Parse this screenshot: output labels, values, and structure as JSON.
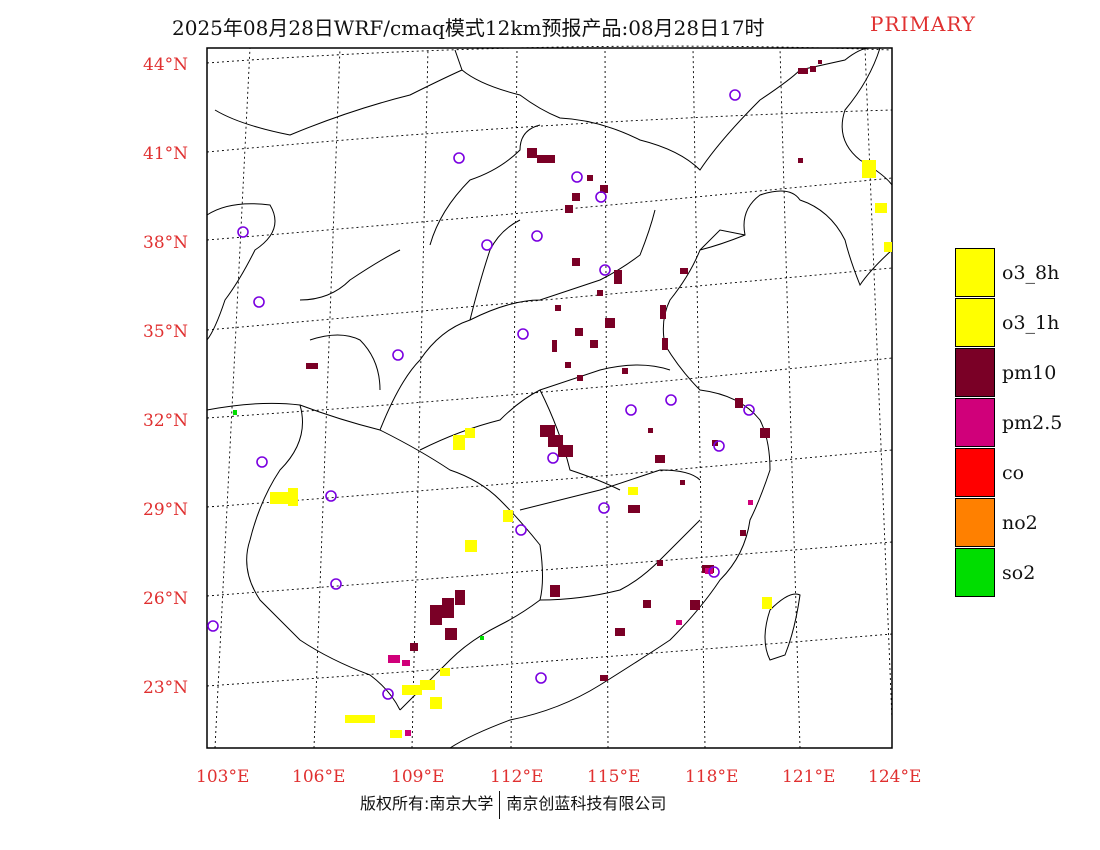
{
  "title": {
    "main": "2025年08月28日WRF/cmaq模式12km预报产品:08月28日17时",
    "tag": "PRIMARY"
  },
  "map": {
    "lat_labels": [
      "44°N",
      "41°N",
      "38°N",
      "35°N",
      "32°N",
      "29°N",
      "26°N",
      "23°N"
    ],
    "lon_labels": [
      "103°E",
      "106°E",
      "109°E",
      "112°E",
      "115°E",
      "118°E",
      "121°E",
      "124°E"
    ]
  },
  "legend": {
    "items": [
      {
        "label": "o3_8h",
        "color": "#ffff00"
      },
      {
        "label": "o3_1h",
        "color": "#ffff00"
      },
      {
        "label": "pm10",
        "color": "#7a0026"
      },
      {
        "label": "pm2.5",
        "color": "#d0007a"
      },
      {
        "label": "co",
        "color": "#ff0000"
      },
      {
        "label": "no2",
        "color": "#ff8000"
      },
      {
        "label": "so2",
        "color": "#00dd00"
      }
    ]
  },
  "footer": {
    "left": "版权所有:南京大学",
    "right": "南京创蓝科技有限公司"
  }
}
